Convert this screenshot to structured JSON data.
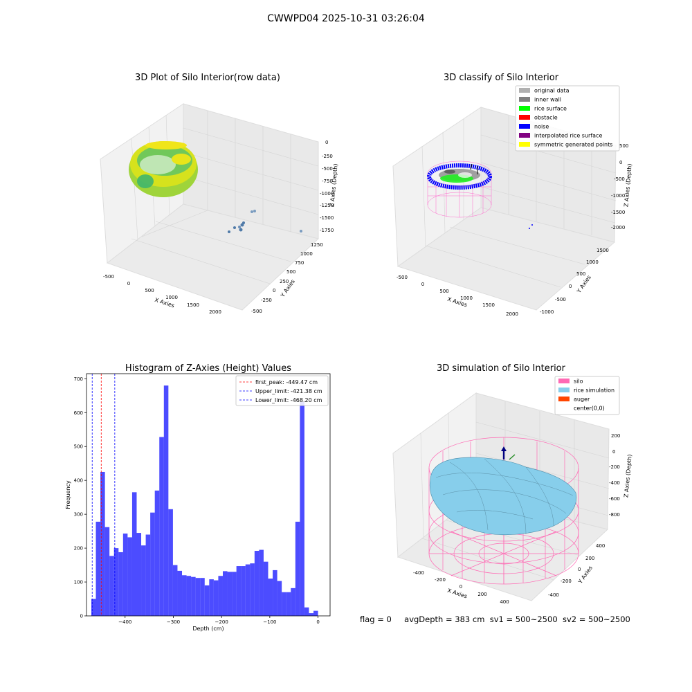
{
  "suptitle": "CWWPD04 2025-10-31 03:26:04",
  "panels": {
    "raw": {
      "title": "3D Plot of Silo Interior(row data)",
      "xlabel": "X Axies",
      "ylabel": "Y Axies",
      "zlabel": "Z Axies (Depth)",
      "xticks": [
        "-500",
        "0",
        "500",
        "1000",
        "1500",
        "2000"
      ],
      "yticks": [
        "-500",
        "-250",
        "0",
        "250",
        "500",
        "750",
        "1000",
        "1250"
      ],
      "zticks": [
        "0",
        "-250",
        "-500",
        "-750",
        "-1000",
        "-1250",
        "-1500",
        "-1750"
      ]
    },
    "classify": {
      "title": "3D classify of Silo Interior",
      "xlabel": "X Axies",
      "ylabel": "Y Axies",
      "zlabel": "Z Axies (Depth)",
      "xticks": [
        "-500",
        "0",
        "500",
        "1000",
        "1500",
        "2000"
      ],
      "yticks": [
        "-1000",
        "-500",
        "0",
        "500",
        "1000",
        "1500"
      ],
      "zticks": [
        "0",
        "-500",
        "-1000",
        "-1500",
        "-2000"
      ],
      "ztick_hidden": "500",
      "legend": [
        {
          "label": "original data",
          "color": "#b0b0b0"
        },
        {
          "label": "inner wall",
          "color": "#808080"
        },
        {
          "label": "rice surface",
          "color": "#00ff00"
        },
        {
          "label": "obstacle",
          "color": "#ff0000"
        },
        {
          "label": "noise",
          "color": "#0000ff"
        },
        {
          "label": "interpolated rice surface",
          "color": "#800080"
        },
        {
          "label": "symmetric generated points",
          "color": "#ffff00"
        }
      ]
    },
    "simulation": {
      "title": "3D simulation of Silo Interior",
      "xlabel": "X Axies",
      "ylabel": "Y Axies",
      "zlabel": "Z Axies (Depth)",
      "xticks": [
        "-400",
        "-200",
        "0",
        "200",
        "400"
      ],
      "yticks": [
        "-400",
        "-200",
        "0",
        "200",
        "400"
      ],
      "zticks": [
        "200",
        "0",
        "-200",
        "-400",
        "-600",
        "-800"
      ],
      "legend": [
        {
          "label": "silo",
          "color": "#ff69b4"
        },
        {
          "label": "rice simulation",
          "color": "#87ceeb"
        },
        {
          "label": "auger",
          "color": "#ff4500"
        },
        {
          "label": "center(0,0)",
          "color": ""
        }
      ]
    }
  },
  "chart_data": {
    "type": "bar",
    "title": "Histogram of Z-Axies (Height) Values",
    "xlabel": "Depth (cm)",
    "ylabel": "Frequency",
    "xlim": [
      -480,
      25
    ],
    "ylim": [
      0,
      715
    ],
    "xticks": [
      -400,
      -300,
      -200,
      -100,
      0
    ],
    "yticks": [
      0,
      100,
      200,
      300,
      400,
      500,
      600,
      700
    ],
    "bin_start": -470,
    "bin_width": 9.4,
    "values": [
      50,
      278,
      425,
      262,
      177,
      200,
      188,
      243,
      232,
      365,
      245,
      208,
      240,
      305,
      370,
      528,
      680,
      315,
      150,
      133,
      120,
      118,
      115,
      112,
      112,
      90,
      108,
      105,
      118,
      132,
      130,
      130,
      147,
      147,
      152,
      155,
      192,
      195,
      160,
      110,
      135,
      103,
      70,
      70,
      82,
      278,
      632,
      25,
      8,
      15
    ],
    "bar_color": "#0000ff",
    "vlines": [
      {
        "label": "first_peak: -449.47 cm",
        "x": -449.47,
        "color": "#ff0000"
      },
      {
        "label": "Upper_limit: -421.38 cm",
        "x": -421.38,
        "color": "#0000ff"
      },
      {
        "label": "Lower_limit: -468.20 cm",
        "x": -468.2,
        "color": "#0000ff"
      }
    ],
    "legend_position": "top-right"
  },
  "footer": {
    "flag": "flag = 0",
    "avg": "avgDepth = 383 cm",
    "sv1": "sv1 = 500~2500",
    "sv2": "sv2 = 500~2500"
  }
}
